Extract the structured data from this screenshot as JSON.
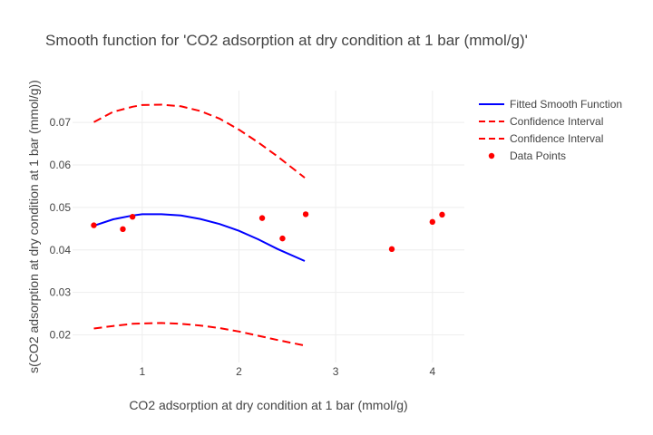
{
  "chart_data": {
    "type": "line",
    "title": "Smooth function for 'CO2 adsorption at dry condition at 1 bar (mmol/g)'",
    "xlabel": "CO2 adsorption at dry condition at 1 bar (mmol/g)",
    "ylabel": "s(CO2 adsorption at dry condition at 1 bar (mmol/g))",
    "xlim": [
      0.28,
      4.33
    ],
    "ylim": [
      0.0135,
      0.0775
    ],
    "x_ticks": [
      1,
      2,
      3,
      4
    ],
    "x_tick_labels": [
      "1",
      "2",
      "3",
      "4"
    ],
    "y_ticks": [
      0.02,
      0.03,
      0.04,
      0.05,
      0.06,
      0.07
    ],
    "y_tick_labels": [
      "0.02",
      "0.03",
      "0.04",
      "0.05",
      "0.06",
      "0.07"
    ],
    "grid": true,
    "legend_position": "top-right",
    "series": [
      {
        "name": "Fitted Smooth Function",
        "kind": "line",
        "style": "solid",
        "color": "#0000ff",
        "x": [
          0.5,
          0.7,
          0.9,
          1.0,
          1.2,
          1.4,
          1.6,
          1.8,
          2.0,
          2.2,
          2.4,
          2.68
        ],
        "y": [
          0.0457,
          0.0472,
          0.0481,
          0.0484,
          0.0484,
          0.0481,
          0.0473,
          0.0461,
          0.0445,
          0.0425,
          0.0402,
          0.0374
        ]
      },
      {
        "name": "Confidence Interval",
        "kind": "line",
        "style": "dashed",
        "color": "#ff0000",
        "x": [
          0.5,
          0.7,
          0.9,
          1.0,
          1.2,
          1.4,
          1.6,
          1.8,
          2.0,
          2.2,
          2.4,
          2.68
        ],
        "y": [
          0.0701,
          0.0725,
          0.0737,
          0.0741,
          0.0742,
          0.0738,
          0.0727,
          0.0709,
          0.0683,
          0.0653,
          0.062,
          0.057
        ]
      },
      {
        "name": "Confidence Interval",
        "kind": "line",
        "style": "dashed",
        "color": "#ff0000",
        "x": [
          0.5,
          0.7,
          0.9,
          1.0,
          1.2,
          1.4,
          1.6,
          1.8,
          2.0,
          2.2,
          2.4,
          2.68
        ],
        "y": [
          0.0215,
          0.0221,
          0.0226,
          0.0227,
          0.0228,
          0.0226,
          0.0222,
          0.0216,
          0.0208,
          0.0198,
          0.0188,
          0.0175
        ]
      },
      {
        "name": "Data Points",
        "kind": "scatter",
        "color": "#ff0000",
        "x": [
          0.5,
          0.8,
          0.9,
          2.24,
          2.45,
          2.69,
          3.58,
          4.0,
          4.1
        ],
        "y": [
          0.0458,
          0.0449,
          0.0478,
          0.0475,
          0.0427,
          0.0484,
          0.0402,
          0.0466,
          0.0483
        ]
      }
    ]
  }
}
